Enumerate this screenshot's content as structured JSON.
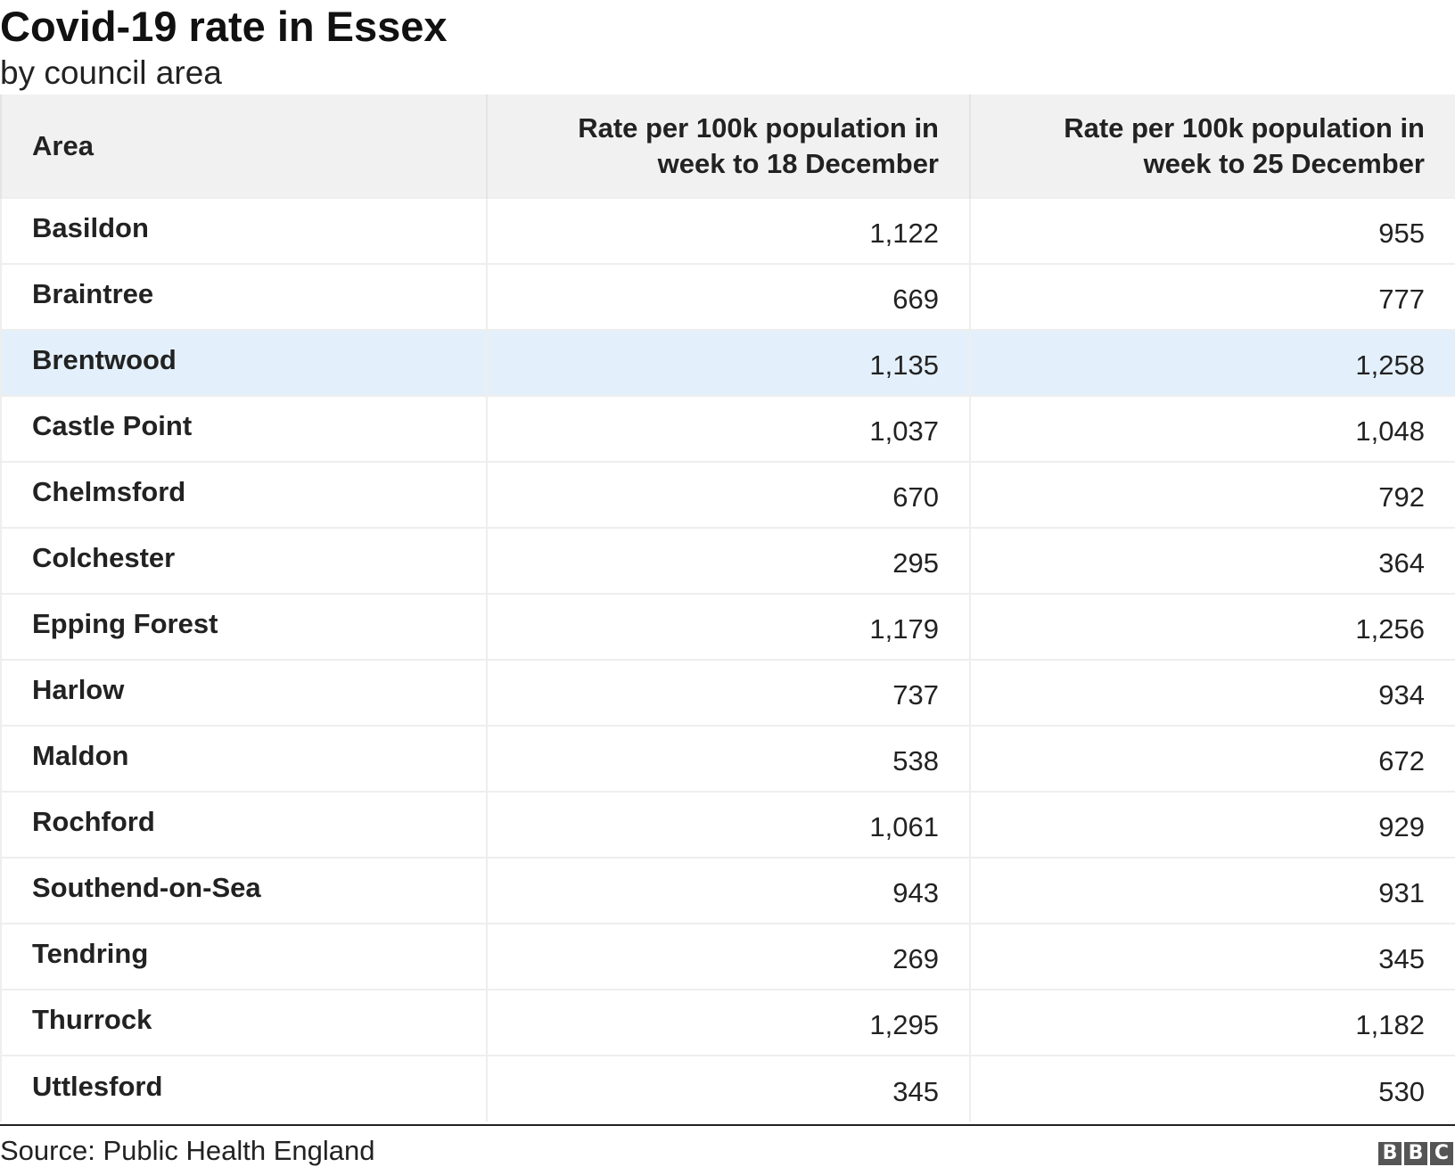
{
  "title": "Covid-19 rate in Essex",
  "subtitle": "by council area",
  "source": "Source: Public Health England",
  "logo": {
    "letters": [
      "B",
      "B",
      "C"
    ],
    "color": "#555555"
  },
  "colors": {
    "header_bg": "#f1f1f1",
    "highlight_row_bg": "#e3f0fb"
  },
  "highlighted_area": "Brentwood",
  "chart_data": {
    "type": "table",
    "title": "Covid-19 rate in Essex",
    "subtitle": "by council area",
    "columns": [
      "Area",
      "Rate per 100k population in week to 18 December",
      "Rate per 100k population in week to 25 December"
    ],
    "rows": [
      [
        "Basildon",
        "1,122",
        "955"
      ],
      [
        "Braintree",
        "669",
        "777"
      ],
      [
        "Brentwood",
        "1,135",
        "1,258"
      ],
      [
        "Castle Point",
        "1,037",
        "1,048"
      ],
      [
        "Chelmsford",
        "670",
        "792"
      ],
      [
        "Colchester",
        "295",
        "364"
      ],
      [
        "Epping Forest",
        "1,179",
        "1,256"
      ],
      [
        "Harlow",
        "737",
        "934"
      ],
      [
        "Maldon",
        "538",
        "672"
      ],
      [
        "Rochford",
        "1,061",
        "929"
      ],
      [
        "Southend-on-Sea",
        "943",
        "931"
      ],
      [
        "Tendring",
        "269",
        "345"
      ],
      [
        "Thurrock",
        "1,295",
        "1,182"
      ],
      [
        "Uttlesford",
        "345",
        "530"
      ]
    ],
    "source": "Source: Public Health England"
  }
}
